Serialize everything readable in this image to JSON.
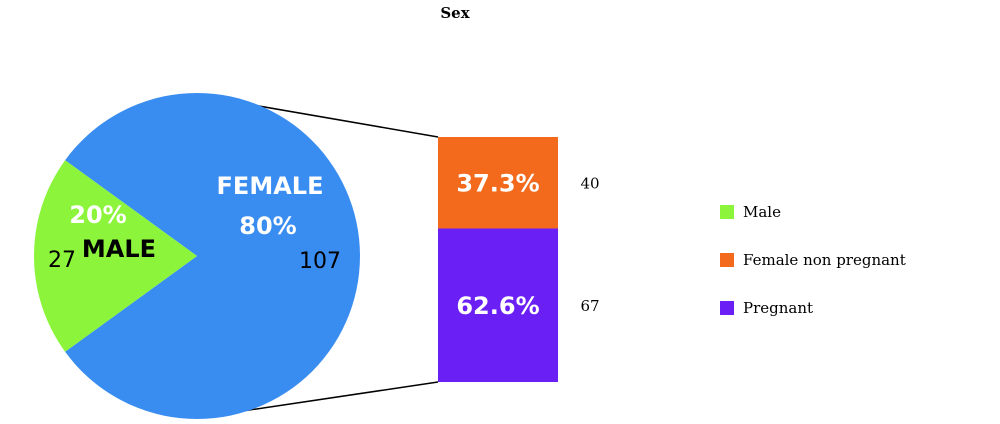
{
  "chart_data": {
    "type": "pie",
    "title": "Sex",
    "pie": {
      "slices": [
        {
          "key": "male",
          "name": "MALE",
          "percent_label": "20%",
          "count": 27,
          "value": 20,
          "color": "#8cf53b"
        },
        {
          "key": "female",
          "name": "FEMALE",
          "percent_label": "80%",
          "count": 107,
          "value": 80,
          "color": "#3a8df0"
        }
      ]
    },
    "breakdown_bar": {
      "of": "female",
      "segments": [
        {
          "key": "female_non_pregnant",
          "percent_label": "37.3%",
          "value": 37.3,
          "count": 40,
          "color": "#f36a1d"
        },
        {
          "key": "pregnant",
          "percent_label": "62.6%",
          "value": 62.6,
          "count": 67,
          "color": "#6a1ff5"
        }
      ]
    },
    "legend": {
      "placement": "right",
      "items": [
        {
          "label": "Male",
          "color": "#8cf53b"
        },
        {
          "label": "Female non pregnant",
          "color": "#f36a1d"
        },
        {
          "label": "Pregnant",
          "color": "#6a1ff5"
        }
      ]
    }
  }
}
